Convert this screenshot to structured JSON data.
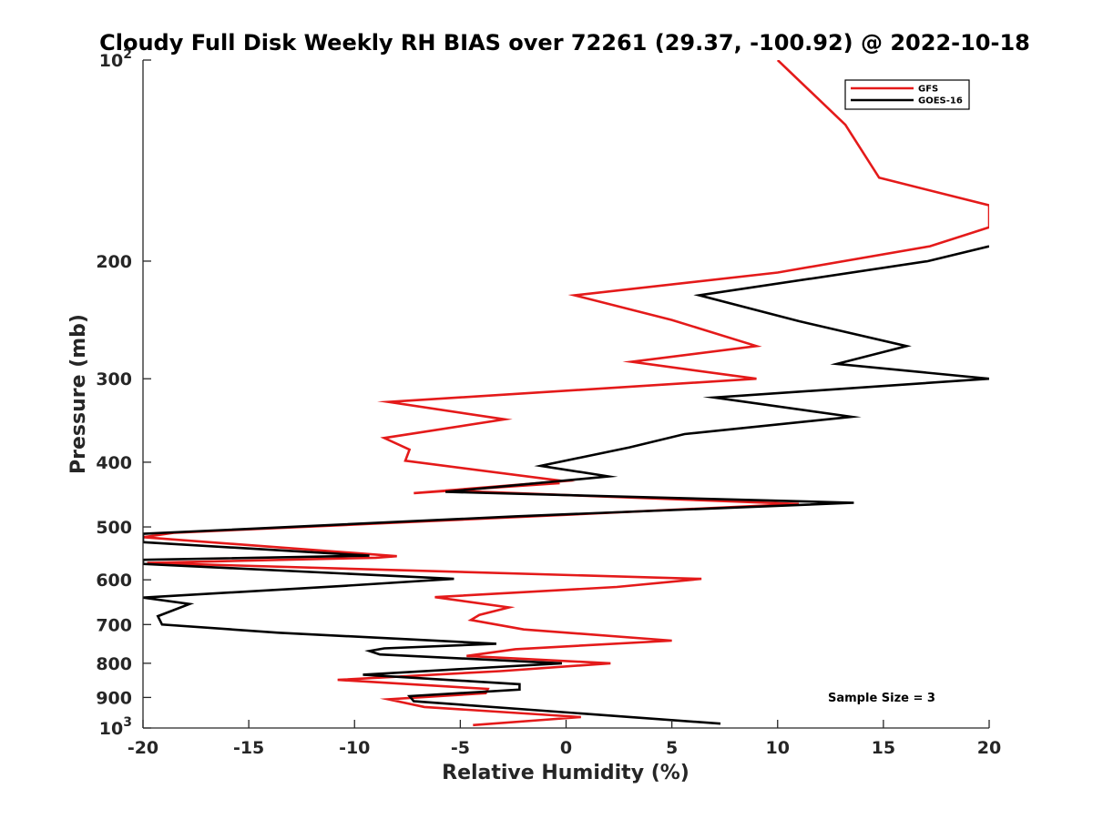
{
  "chart_data": {
    "type": "line",
    "title": "Cloudy Full Disk Weekly RH BIAS over 72261 (29.37, -100.92) @ 2022-10-18",
    "xlabel": "Relative Humidity (%)",
    "ylabel": "Pressure (mb)",
    "xlim": [
      -20,
      20
    ],
    "ylim": [
      100,
      1000
    ],
    "y_scale": "log",
    "y_reversed": true,
    "grid": false,
    "legend_position": "top-right",
    "x_ticks": [
      -20,
      -15,
      -10,
      -5,
      0,
      5,
      10,
      15,
      20
    ],
    "y_ticks": [
      {
        "value": 100,
        "base": "10",
        "exp": "2"
      },
      {
        "value": 200,
        "label": "200"
      },
      {
        "value": 300,
        "label": "300"
      },
      {
        "value": 400,
        "label": "400"
      },
      {
        "value": 500,
        "label": "500"
      },
      {
        "value": 600,
        "label": "600"
      },
      {
        "value": 700,
        "label": "700"
      },
      {
        "value": 800,
        "label": "800"
      },
      {
        "value": 900,
        "label": "900"
      },
      {
        "value": 1000,
        "base": "10",
        "exp": "3"
      }
    ],
    "annotation": "Sample Size = 3",
    "series": [
      {
        "name": "GFS",
        "color": "#e41a1a",
        "points": [
          [
            10.0,
            100
          ],
          [
            13.2,
            125
          ],
          [
            14.8,
            150
          ],
          [
            20.0,
            165
          ],
          [
            20.0,
            178
          ],
          [
            17.2,
            190
          ],
          [
            10.0,
            208
          ],
          [
            0.4,
            225
          ],
          [
            5.0,
            245
          ],
          [
            9.0,
            268
          ],
          [
            3.1,
            283
          ],
          [
            9.0,
            300
          ],
          [
            -8.4,
            325
          ],
          [
            -2.9,
            345
          ],
          [
            -8.6,
            368
          ],
          [
            -7.4,
            383
          ],
          [
            -7.6,
            398
          ],
          [
            -0.1,
            427
          ],
          [
            -7.2,
            445
          ],
          [
            -0.3,
            430
          ],
          [
            -5.7,
            441
          ],
          [
            11.0,
            462
          ],
          [
            -10.0,
            496
          ],
          [
            -18.5,
            510
          ],
          [
            -20.0,
            518
          ],
          [
            -8.0,
            553
          ],
          [
            -9.0,
            556
          ],
          [
            -19.8,
            566
          ],
          [
            6.4,
            598
          ],
          [
            2.4,
            615
          ],
          [
            -6.2,
            637
          ],
          [
            -2.7,
            660
          ],
          [
            -4.1,
            677
          ],
          [
            -4.5,
            689
          ],
          [
            -2.0,
            712
          ],
          [
            5.0,
            740
          ],
          [
            -2.4,
            762
          ],
          [
            -4.7,
            780
          ],
          [
            2.1,
            800
          ],
          [
            -3.1,
            822
          ],
          [
            -10.8,
            847
          ],
          [
            -3.7,
            874
          ],
          [
            -3.8,
            887
          ],
          [
            -8.4,
            906
          ],
          [
            -6.7,
            930
          ],
          [
            0.7,
            963
          ],
          [
            -4.4,
            990
          ]
        ]
      },
      {
        "name": "GOES-16",
        "color": "#000000",
        "points": [
          [
            20.0,
            190
          ],
          [
            17.1,
            200
          ],
          [
            6.3,
            225
          ],
          [
            11.0,
            246
          ],
          [
            16.1,
            268
          ],
          [
            12.8,
            285
          ],
          [
            20.0,
            300
          ],
          [
            7.0,
            320
          ],
          [
            13.5,
            342
          ],
          [
            5.6,
            363
          ],
          [
            3.0,
            380
          ],
          [
            -1.2,
            405
          ],
          [
            2.0,
            420
          ],
          [
            -5.7,
            443
          ],
          [
            13.6,
            460
          ],
          [
            -2.4,
            482
          ],
          [
            -20.0,
            512
          ],
          [
            -20.0,
            527
          ],
          [
            -9.3,
            552
          ],
          [
            -20.0,
            560
          ],
          [
            -20.0,
            568
          ],
          [
            -5.3,
            598
          ],
          [
            -10.3,
            612
          ],
          [
            -20.0,
            638
          ],
          [
            -17.8,
            652
          ],
          [
            -19.3,
            680
          ],
          [
            -19.1,
            700
          ],
          [
            -13.6,
            720
          ],
          [
            -3.3,
            748
          ],
          [
            -8.6,
            760
          ],
          [
            -9.3,
            767
          ],
          [
            -8.8,
            776
          ],
          [
            -0.2,
            800
          ],
          [
            -9.6,
            832
          ],
          [
            -2.2,
            860
          ],
          [
            -2.2,
            876
          ],
          [
            -7.4,
            896
          ],
          [
            -7.2,
            912
          ],
          [
            7.3,
            985
          ]
        ]
      }
    ]
  }
}
